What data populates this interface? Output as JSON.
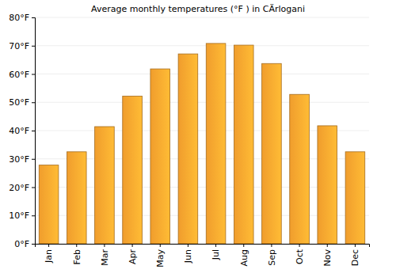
{
  "chart_data": {
    "type": "bar",
    "title": "Average monthly temperatures (°F ) in CÄrlogani",
    "categories": [
      "Jan",
      "Feb",
      "Mar",
      "Apr",
      "May",
      "Jun",
      "Jul",
      "Aug",
      "Sep",
      "Oct",
      "Nov",
      "Dec"
    ],
    "values": [
      27.8,
      32.5,
      41.4,
      52.2,
      61.8,
      67.1,
      70.8,
      70.2,
      63.7,
      52.8,
      41.7,
      32.5
    ],
    "color": "#fda62f",
    "ylim": [
      0,
      80
    ],
    "yticks": [
      {
        "value": 0,
        "label": "0°F"
      },
      {
        "value": 10,
        "label": "10°F"
      },
      {
        "value": 20,
        "label": "20°F"
      },
      {
        "value": 30,
        "label": "30°F"
      },
      {
        "value": 40,
        "label": "40°F"
      },
      {
        "value": 50,
        "label": "50°F"
      },
      {
        "value": 60,
        "label": "60°F"
      },
      {
        "value": 70,
        "label": "70°F"
      },
      {
        "value": 80,
        "label": "80°F"
      }
    ],
    "grid": true
  }
}
